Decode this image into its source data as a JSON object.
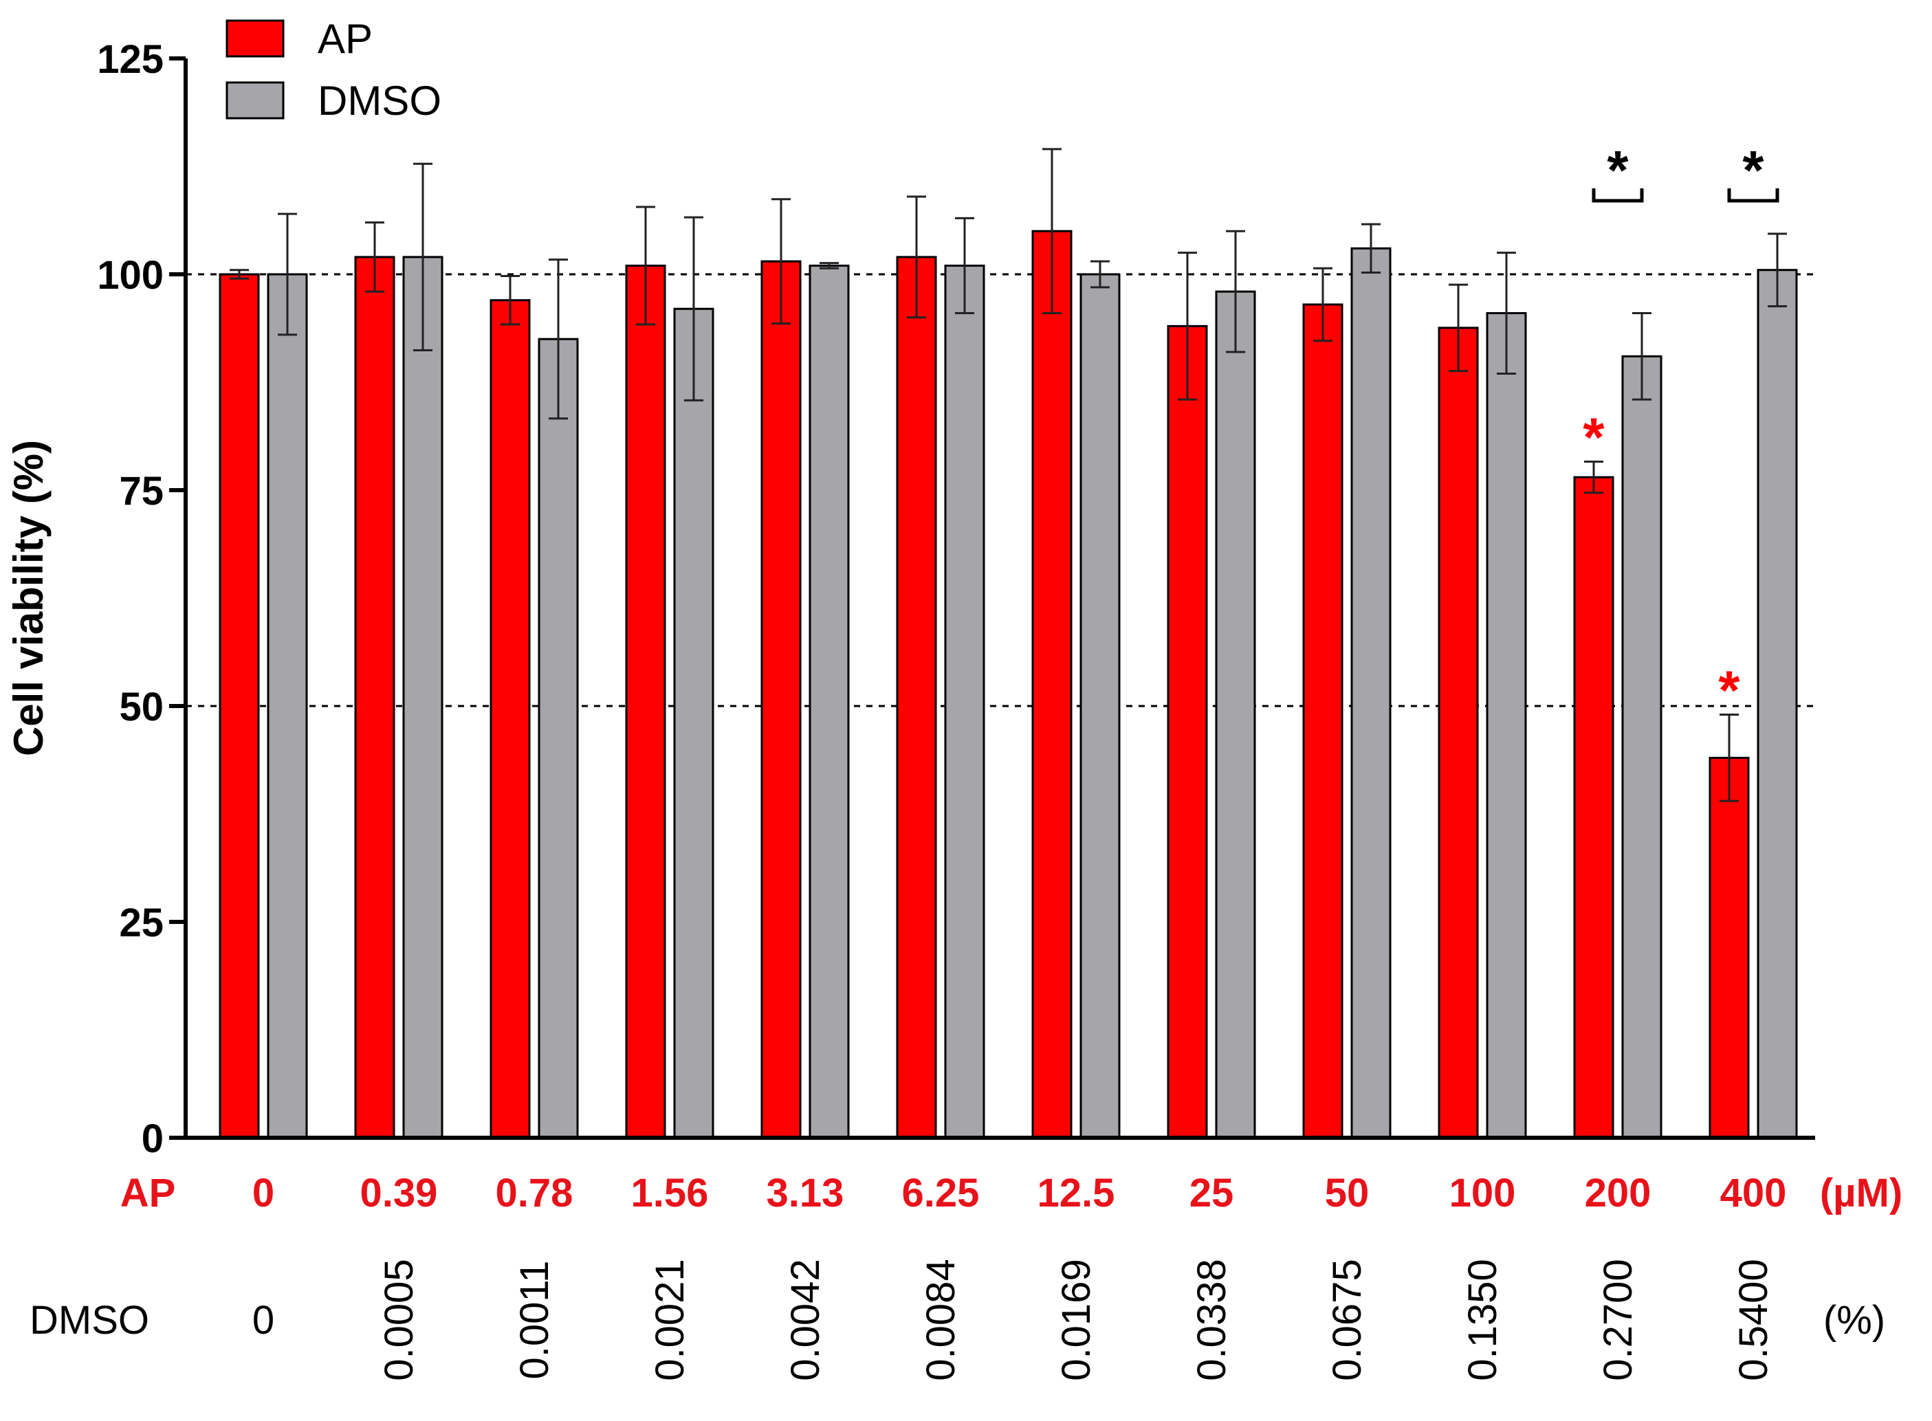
{
  "chart_data": {
    "type": "bar",
    "ylabel": "Cell viability (%)",
    "ylim": [
      0,
      125
    ],
    "yticks": [
      0,
      25,
      50,
      75,
      100,
      125
    ],
    "reference_lines": [
      50,
      100
    ],
    "categories": [
      "0",
      "0.39",
      "0.78",
      "1.56",
      "3.13",
      "6.25",
      "12.5",
      "25",
      "50",
      "100",
      "200",
      "400"
    ],
    "x_row_label": "AP",
    "x_unit": "(µM)",
    "dmso_row_label": "DMSO",
    "dmso_unit": "(%)",
    "dmso_concentrations": [
      "0",
      "0.0005",
      "0.0011",
      "0.0021",
      "0.0042",
      "0.0084",
      "0.0169",
      "0.0338",
      "0.0675",
      "0.1350",
      "0.2700",
      "0.5400"
    ],
    "series": [
      {
        "name": "AP",
        "color": "#ff0000",
        "values": [
          100,
          102,
          97,
          101,
          101.5,
          102,
          105,
          94,
          96.5,
          93.8,
          76.5,
          44
        ],
        "errors": [
          0.5,
          4,
          2.8,
          6.8,
          7.2,
          7,
          9.5,
          8.5,
          4.2,
          5,
          1.8,
          5
        ]
      },
      {
        "name": "DMSO",
        "color": "#a6a6aa",
        "values": [
          100,
          102,
          92.5,
          96,
          101,
          101,
          100,
          98,
          103,
          95.5,
          90.5,
          100.5
        ],
        "errors": [
          7,
          10.8,
          9.2,
          10.6,
          0.3,
          5.5,
          1.5,
          7,
          2.8,
          7,
          5,
          4.2
        ]
      }
    ],
    "significance": [
      {
        "category": "200",
        "series": "AP",
        "mark": "*",
        "color": "#ff0000"
      },
      {
        "category": "400",
        "series": "AP",
        "mark": "*",
        "color": "#ff0000"
      },
      {
        "category": "200",
        "bracket": [
          "AP",
          "DMSO"
        ],
        "mark": "*",
        "color": "#000000"
      },
      {
        "category": "400",
        "bracket": [
          "AP",
          "DMSO"
        ],
        "mark": "*",
        "color": "#000000"
      }
    ],
    "legend": [
      {
        "label": "AP",
        "color": "#ff0000"
      },
      {
        "label": "DMSO",
        "color": "#a6a6aa"
      }
    ],
    "legend_position": "top-left"
  }
}
